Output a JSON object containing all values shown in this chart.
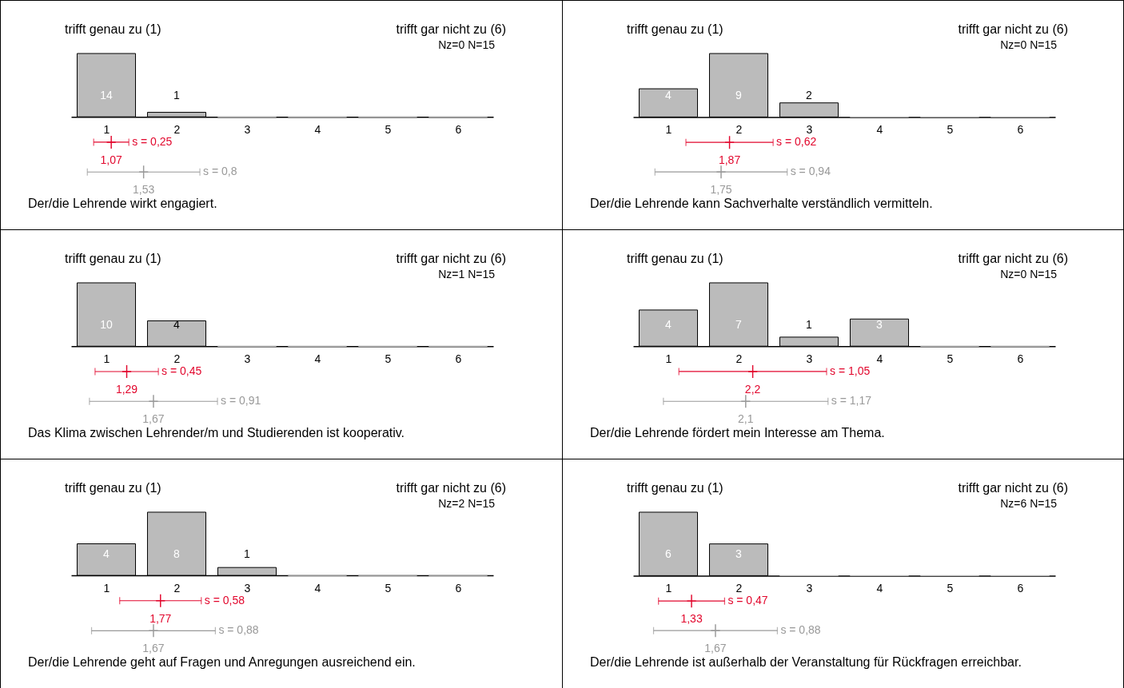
{
  "chart_data": [
    {
      "type": "bar",
      "title": "Der/die Lehrende wirkt engagiert.",
      "marker": "cross",
      "x": [
        1,
        2,
        3,
        4,
        5,
        6
      ],
      "xlim": [
        0.5,
        6.5
      ],
      "xticks": [
        1,
        2,
        3,
        4,
        5,
        6
      ],
      "grid": false,
      "annotations": [
        "trifft genau zu (1)",
        "trifft gar nicht zu (6)",
        "Nz=0  N=15",
        {
          "text": "1,07",
          "x": 1.07,
          "y": -5.6
        },
        {
          "text": "s = 0,25",
          "x": 1.32,
          "y": -5.6
        },
        {
          "text": "1,53",
          "x": 1.53,
          "y": -12.2
        },
        {
          "text": "s = 0,8",
          "x": 2.33,
          "y": -12.2
        }
      ],
      "series": [
        {
          "color": "#bbbbbb",
          "values": [
            14,
            1,
            0,
            0,
            0,
            0
          ],
          "value_labels": [
            "14",
            "1",
            null,
            null,
            null,
            null
          ]
        },
        {
          "type": "scatter",
          "color": "#e2062c",
          "x": [
            1.07
          ],
          "values": [
            -5.6
          ],
          "xerrors": [
            0.25
          ]
        },
        {
          "type": "scatter",
          "color": "#999999",
          "x": [
            1.53
          ],
          "values": [
            -12.2
          ],
          "xerrors": [
            0.8
          ]
        }
      ]
    },
    {
      "type": "bar",
      "title": "Der/die Lehrende kann Sachverhalte verständlich vermitteln.",
      "marker": "cross",
      "x": [
        1,
        2,
        3,
        4,
        5,
        6
      ],
      "xlim": [
        0.5,
        6.5
      ],
      "xticks": [
        1,
        2,
        3,
        4,
        5,
        6
      ],
      "grid": false,
      "annotations": [
        "trifft genau zu (1)",
        "trifft gar nicht zu (6)",
        "Nz=0  N=15",
        {
          "text": "1,87",
          "x": 1.87,
          "y": -3.6
        },
        {
          "text": "s = 0,62",
          "x": 2.49,
          "y": -3.6
        },
        {
          "text": "1,75",
          "x": 1.75,
          "y": -7.8
        },
        {
          "text": "s = 0,94",
          "x": 2.69,
          "y": -7.8
        }
      ],
      "series": [
        {
          "color": "#bbbbbb",
          "values": [
            4,
            9,
            2,
            0,
            0,
            0
          ],
          "value_labels": [
            "4",
            "9",
            "2",
            null,
            null,
            null
          ]
        },
        {
          "type": "scatter",
          "color": "#e2062c",
          "x": [
            1.87
          ],
          "values": [
            -3.6
          ],
          "xerrors": [
            0.62
          ]
        },
        {
          "type": "scatter",
          "color": "#999999",
          "x": [
            1.75
          ],
          "values": [
            -7.8
          ],
          "xerrors": [
            0.94
          ]
        }
      ]
    },
    {
      "type": "bar",
      "title": "Das Klima zwischen Lehrender/m und Studierenden ist kooperativ.",
      "marker": "cross",
      "x": [
        1,
        2,
        3,
        4,
        5,
        6
      ],
      "xlim": [
        0.5,
        6.5
      ],
      "xticks": [
        1,
        2,
        3,
        4,
        5,
        6
      ],
      "grid": false,
      "annotations": [
        "trifft genau zu (1)",
        "trifft gar nicht zu (6)",
        "Nz=1  N=15",
        {
          "text": "1,29",
          "x": 1.29,
          "y": -4
        },
        {
          "text": "s = 0,45",
          "x": 1.74,
          "y": -4
        },
        {
          "text": "1,67",
          "x": 1.67,
          "y": -8.7
        },
        {
          "text": "s = 0,91",
          "x": 2.58,
          "y": -8.7
        }
      ],
      "series": [
        {
          "color": "#bbbbbb",
          "values": [
            10,
            4,
            0,
            0,
            0,
            0
          ],
          "value_labels": [
            "10",
            "4",
            null,
            null,
            null,
            null
          ]
        },
        {
          "type": "scatter",
          "color": "#e2062c",
          "x": [
            1.29
          ],
          "values": [
            -4
          ],
          "xerrors": [
            0.45
          ]
        },
        {
          "type": "scatter",
          "color": "#999999",
          "x": [
            1.67
          ],
          "values": [
            -8.7
          ],
          "xerrors": [
            0.91
          ]
        }
      ]
    },
    {
      "type": "bar",
      "title": "Der/die Lehrende fördert mein Interesse am Thema.",
      "marker": "cross",
      "x": [
        1,
        2,
        3,
        4,
        5,
        6
      ],
      "xlim": [
        0.5,
        6.5
      ],
      "xticks": [
        1,
        2,
        3,
        4,
        5,
        6
      ],
      "grid": false,
      "annotations": [
        "trifft genau zu (1)",
        "trifft gar nicht zu (6)",
        "Nz=0  N=15",
        {
          "text": "2,2",
          "x": 2.2,
          "y": -2.8
        },
        {
          "text": "s = 1,05",
          "x": 3.25,
          "y": -2.8
        },
        {
          "text": "2,1",
          "x": 2.1,
          "y": -6.1
        },
        {
          "text": "s = 1,17",
          "x": 3.27,
          "y": -6.1
        }
      ],
      "series": [
        {
          "color": "#bbbbbb",
          "values": [
            4,
            7,
            1,
            3,
            0,
            0
          ],
          "value_labels": [
            "4",
            "7",
            "1",
            "3",
            null,
            null
          ]
        },
        {
          "type": "scatter",
          "color": "#e2062c",
          "x": [
            2.2
          ],
          "values": [
            -2.8
          ],
          "xerrors": [
            1.05
          ]
        },
        {
          "type": "scatter",
          "color": "#999999",
          "x": [
            2.1
          ],
          "values": [
            -6.1
          ],
          "xerrors": [
            1.17
          ]
        }
      ]
    },
    {
      "type": "bar",
      "title": "Der/die Lehrende geht auf Fragen und Anregungen ausreichend ein.",
      "marker": "cross",
      "x": [
        1,
        2,
        3,
        4,
        5,
        6
      ],
      "xlim": [
        0.5,
        6.5
      ],
      "xticks": [
        1,
        2,
        3,
        4,
        5,
        6
      ],
      "grid": false,
      "annotations": [
        "trifft genau zu (1)",
        "trifft gar nicht zu (6)",
        "Nz=2  N=15",
        {
          "text": "1,77",
          "x": 1.77,
          "y": -3.2
        },
        {
          "text": "s = 0,58",
          "x": 2.35,
          "y": -3.2
        },
        {
          "text": "1,67",
          "x": 1.67,
          "y": -7
        },
        {
          "text": "s = 0,88",
          "x": 2.55,
          "y": -7
        }
      ],
      "series": [
        {
          "color": "#bbbbbb",
          "values": [
            4,
            8,
            1,
            0,
            0,
            0
          ],
          "value_labels": [
            "4",
            "8",
            "1",
            null,
            null,
            null
          ]
        },
        {
          "type": "scatter",
          "color": "#e2062c",
          "x": [
            1.77
          ],
          "values": [
            -3.2
          ],
          "xerrors": [
            0.58
          ]
        },
        {
          "type": "scatter",
          "color": "#999999",
          "x": [
            1.67
          ],
          "values": [
            -7
          ],
          "xerrors": [
            0.88
          ]
        }
      ]
    },
    {
      "type": "bar",
      "title": "Der/die Lehrende ist außerhalb der Veranstaltung für Rückfragen erreichbar.",
      "marker": "cross",
      "x": [
        1,
        2,
        3,
        4,
        5,
        6
      ],
      "xlim": [
        0.5,
        6.5
      ],
      "xticks": [
        1,
        2,
        3,
        4,
        5,
        6
      ],
      "grid": false,
      "annotations": [
        "trifft genau zu (1)",
        "trifft gar nicht zu (6)",
        "Nz=6  N=15",
        {
          "text": "1,33",
          "x": 1.33,
          "y": -2.4
        },
        {
          "text": "s = 0,47",
          "x": 1.8,
          "y": -2.4
        },
        {
          "text": "1,67",
          "x": 1.67,
          "y": -5.2
        },
        {
          "text": "s = 0,88",
          "x": 2.55,
          "y": -5.2
        }
      ],
      "series": [
        {
          "color": "#bbbbbb",
          "values": [
            6,
            3,
            0,
            0,
            0,
            0
          ],
          "value_labels": [
            "6",
            "3",
            null,
            null,
            null,
            null
          ]
        },
        {
          "type": "scatter",
          "color": "#e2062c",
          "x": [
            1.33
          ],
          "values": [
            -2.4
          ],
          "xerrors": [
            0.47
          ]
        },
        {
          "type": "scatter",
          "color": "#999999",
          "x": [
            1.67
          ],
          "values": [
            -5.2
          ],
          "xerrors": [
            0.88
          ]
        }
      ]
    }
  ]
}
